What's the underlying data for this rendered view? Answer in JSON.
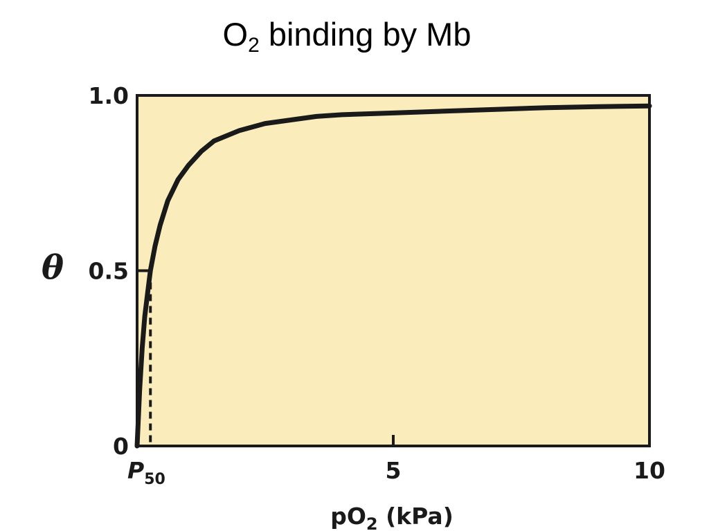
{
  "title": {
    "main": "O",
    "sub": "2",
    "rest": " binding by Mb"
  },
  "colors": {
    "plot_background": "#fbedbb",
    "curve": "#1a1a1a",
    "axis": "#1a1a1a"
  },
  "chart_data": {
    "type": "line",
    "title": "O2 binding by Mb",
    "xlabel": {
      "main": "pO",
      "sub": "2",
      "rest": " (kPa)"
    },
    "ylabel": "θ",
    "xlim": [
      0,
      10
    ],
    "ylim": [
      0,
      1
    ],
    "grid": false,
    "x_ticks": [
      {
        "value": 5,
        "label": "5"
      },
      {
        "value": 10,
        "label": "10"
      }
    ],
    "y_ticks": [
      {
        "value": 0,
        "label": "0"
      },
      {
        "value": 0.5,
        "label": "0.5"
      },
      {
        "value": 1.0,
        "label": "1.0"
      }
    ],
    "annotations": [
      {
        "text": "P",
        "sub": "50",
        "x": 0.26,
        "y": 0.5
      }
    ],
    "series": [
      {
        "style": "solid",
        "x": [
          0,
          0.05,
          0.1,
          0.15,
          0.2,
          0.26,
          0.35,
          0.45,
          0.6,
          0.8,
          1.0,
          1.25,
          1.5,
          2.0,
          2.5,
          3.0,
          3.5,
          4.0,
          5.0,
          6.0,
          7.0,
          8.0,
          9.0,
          10.0
        ],
        "y": [
          0,
          0.16,
          0.28,
          0.37,
          0.43,
          0.5,
          0.57,
          0.63,
          0.7,
          0.76,
          0.8,
          0.84,
          0.87,
          0.9,
          0.92,
          0.93,
          0.94,
          0.945,
          0.95,
          0.955,
          0.96,
          0.965,
          0.968,
          0.97
        ]
      }
    ]
  }
}
